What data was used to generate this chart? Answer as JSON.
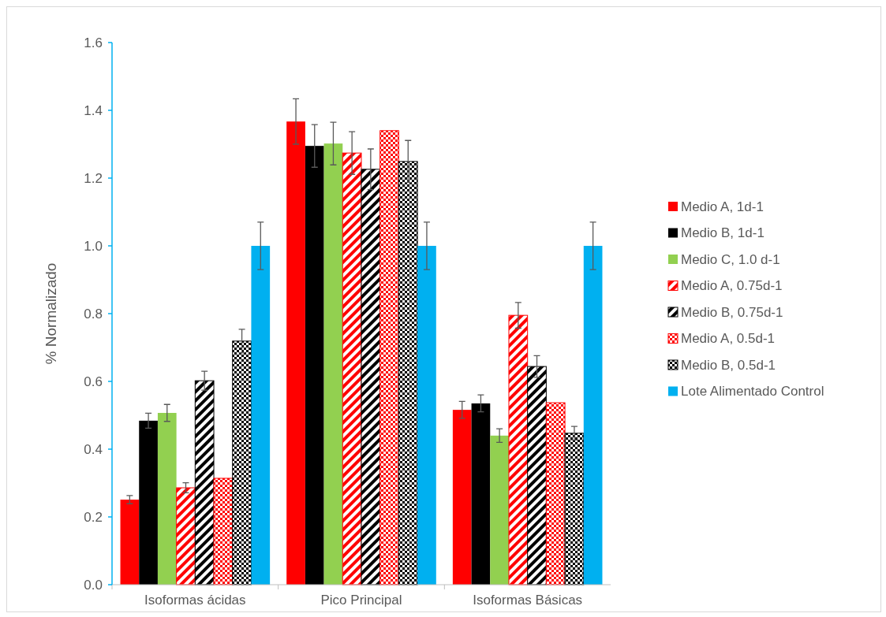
{
  "chart_data": {
    "type": "bar",
    "ylabel": "% Normalizado",
    "categories": [
      "Isoformas ácidas",
      "Pico Principal",
      "Isoformas Básicas"
    ],
    "ylim": [
      0,
      1.6
    ],
    "yticks": [
      {
        "value": 0,
        "label": "0.0"
      },
      0.2,
      0.4,
      0.6,
      0.8,
      {
        "value": 1,
        "label": "1.0"
      },
      1.2,
      1.4,
      1.6
    ],
    "legend": "right",
    "grid": false,
    "series": [
      {
        "name": "Medio A, 1d-1",
        "color": "#ff0000",
        "values": [
          0.251,
          1.367,
          0.516
        ],
        "errors": [
          0.012,
          0.067,
          0.025
        ]
      },
      {
        "name": "Medio B, 1d-1",
        "color": "#000000",
        "values": [
          0.484,
          1.295,
          0.535
        ],
        "errors": [
          0.022,
          0.063,
          0.025
        ]
      },
      {
        "name": "Medio C, 1.0 d-1",
        "color": "#92d050",
        "values": [
          0.507,
          1.302,
          0.44
        ],
        "errors": [
          0.025,
          0.063,
          0.02
        ]
      },
      {
        "name": "Medio A, 0.75d-1",
        "color": "#ff0000",
        "values": [
          0.286,
          1.274,
          0.795
        ],
        "errors": [
          0.015,
          0.063,
          0.038
        ]
      },
      {
        "name": "Medio B, 0.75d-1",
        "color": "#000000",
        "values": [
          0.602,
          1.226,
          0.644
        ],
        "errors": [
          0.028,
          0.06,
          0.032
        ]
      },
      {
        "name": "Medio A, 0.5d-1",
        "color": "#ff0000",
        "values": [
          0.314,
          1.34,
          0.537
        ],
        "errors": [
          null,
          null,
          null
        ]
      },
      {
        "name": "Medio B, 0.5d-1",
        "color": "#000000",
        "values": [
          0.719,
          1.249,
          0.447
        ],
        "errors": [
          0.035,
          0.062,
          0.02
        ]
      },
      {
        "name": "Lote Alimentado Control",
        "color": "#00b0f0",
        "values": [
          1.0,
          1.0,
          1.0
        ],
        "errors": [
          0.07,
          0.07,
          0.07
        ]
      }
    ]
  }
}
